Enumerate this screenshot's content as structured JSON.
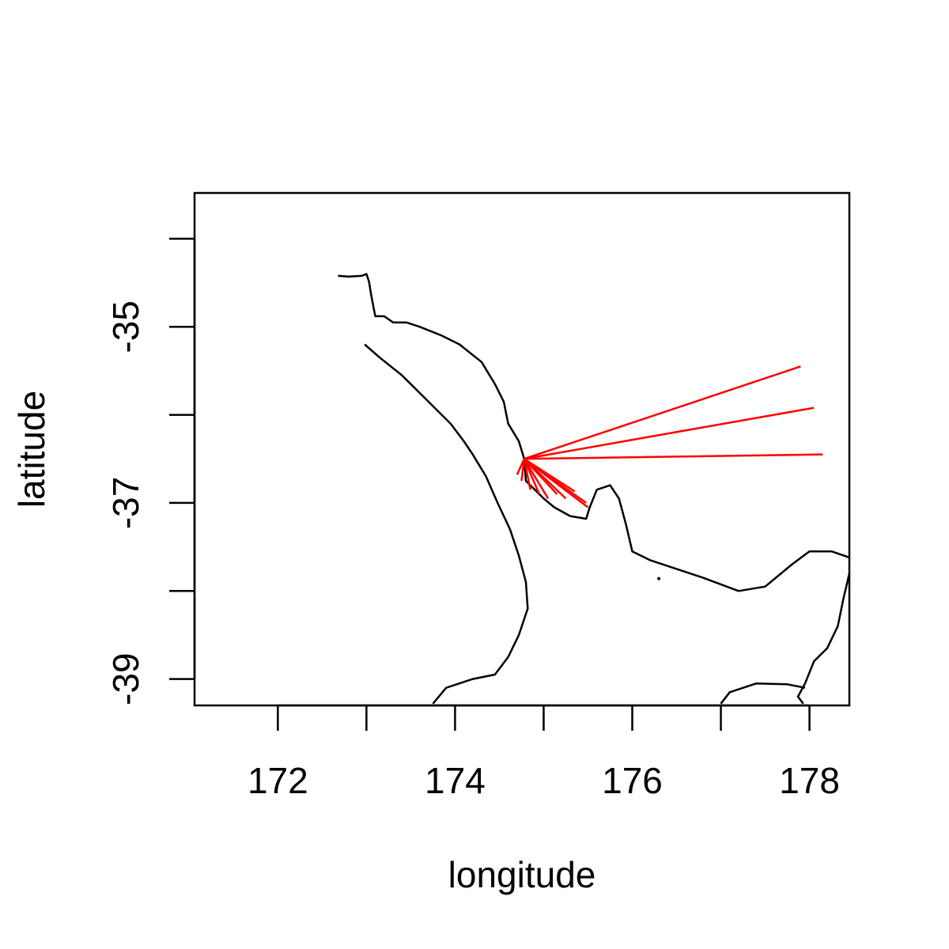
{
  "chart_data": {
    "type": "map",
    "title": "",
    "xlabel": "longitude",
    "ylabel": "latitude",
    "xlim": [
      171.06,
      178.45
    ],
    "ylim": [
      -39.3,
      -33.48
    ],
    "xticks": [
      {
        "value": 172,
        "label": "172"
      },
      {
        "value": 173,
        "label": ""
      },
      {
        "value": 174,
        "label": "174"
      },
      {
        "value": 175,
        "label": ""
      },
      {
        "value": 176,
        "label": "176"
      },
      {
        "value": 177,
        "label": ""
      },
      {
        "value": 178,
        "label": "178"
      }
    ],
    "yticks": [
      {
        "value": -34,
        "label": ""
      },
      {
        "value": -35,
        "label": "-35"
      },
      {
        "value": -36,
        "label": ""
      },
      {
        "value": -37,
        "label": "-37"
      },
      {
        "value": -38,
        "label": ""
      },
      {
        "value": -39,
        "label": "-39"
      }
    ],
    "grid": false,
    "line_color": "#ff0000",
    "coast_color": "#000000",
    "segments": {
      "origin": {
        "lon": 174.78,
        "lat": -36.5
      },
      "ends": [
        {
          "lon": 177.9,
          "lat": -35.45
        },
        {
          "lon": 178.05,
          "lat": -35.92
        },
        {
          "lon": 178.15,
          "lat": -36.45
        },
        {
          "lon": 174.7,
          "lat": -36.68
        },
        {
          "lon": 174.75,
          "lat": -36.75
        },
        {
          "lon": 174.85,
          "lat": -36.85
        },
        {
          "lon": 174.95,
          "lat": -36.9
        },
        {
          "lon": 175.05,
          "lat": -36.95
        },
        {
          "lon": 175.15,
          "lat": -36.9
        },
        {
          "lon": 175.25,
          "lat": -36.95
        },
        {
          "lon": 175.35,
          "lat": -36.87
        },
        {
          "lon": 175.48,
          "lat": -37.0
        },
        {
          "lon": 175.5,
          "lat": -37.05
        }
      ]
    },
    "coastlines": [
      [
        [
          172.68,
          -34.42
        ],
        [
          172.8,
          -34.43
        ],
        [
          172.95,
          -34.42
        ],
        [
          173.0,
          -34.4
        ],
        [
          173.03,
          -34.49
        ],
        [
          173.05,
          -34.62
        ],
        [
          173.08,
          -34.78
        ],
        [
          173.1,
          -34.88
        ],
        [
          173.2,
          -34.88
        ],
        [
          173.3,
          -34.95
        ],
        [
          173.45,
          -34.95
        ],
        [
          173.6,
          -35.0
        ],
        [
          173.85,
          -35.1
        ],
        [
          174.05,
          -35.2
        ],
        [
          174.3,
          -35.4
        ],
        [
          174.45,
          -35.65
        ],
        [
          174.55,
          -35.85
        ],
        [
          174.6,
          -36.1
        ],
        [
          174.72,
          -36.3
        ],
        [
          174.78,
          -36.5
        ],
        [
          174.8,
          -36.75
        ],
        [
          174.9,
          -36.85
        ],
        [
          175.0,
          -36.95
        ],
        [
          175.12,
          -37.05
        ],
        [
          175.3,
          -37.15
        ],
        [
          175.48,
          -37.18
        ],
        [
          175.52,
          -37.05
        ],
        [
          175.6,
          -36.85
        ],
        [
          175.75,
          -36.8
        ],
        [
          175.85,
          -36.95
        ],
        [
          175.93,
          -37.25
        ],
        [
          176.0,
          -37.55
        ],
        [
          176.2,
          -37.65
        ],
        [
          176.5,
          -37.75
        ],
        [
          176.8,
          -37.85
        ],
        [
          177.2,
          -38.0
        ],
        [
          177.5,
          -37.95
        ],
        [
          177.8,
          -37.7
        ],
        [
          178.0,
          -37.55
        ],
        [
          178.25,
          -37.55
        ],
        [
          178.45,
          -37.62
        ]
      ],
      [
        [
          178.45,
          -37.8
        ],
        [
          178.38,
          -38.1
        ],
        [
          178.32,
          -38.4
        ],
        [
          178.2,
          -38.65
        ],
        [
          178.05,
          -38.8
        ],
        [
          177.95,
          -39.05
        ],
        [
          177.87,
          -39.2
        ],
        [
          177.93,
          -39.28
        ]
      ],
      [
        [
          172.98,
          -35.2
        ],
        [
          173.15,
          -35.35
        ],
        [
          173.4,
          -35.55
        ],
        [
          173.7,
          -35.85
        ],
        [
          173.95,
          -36.1
        ],
        [
          174.1,
          -36.3
        ],
        [
          174.2,
          -36.45
        ],
        [
          174.35,
          -36.7
        ],
        [
          174.48,
          -37.0
        ],
        [
          174.62,
          -37.3
        ],
        [
          174.72,
          -37.6
        ],
        [
          174.8,
          -37.9
        ],
        [
          174.82,
          -38.2
        ],
        [
          174.72,
          -38.5
        ],
        [
          174.6,
          -38.75
        ],
        [
          174.45,
          -38.95
        ],
        [
          174.2,
          -39.0
        ],
        [
          173.9,
          -39.1
        ],
        [
          173.75,
          -39.28
        ]
      ],
      [
        [
          177.0,
          -39.28
        ],
        [
          177.1,
          -39.15
        ],
        [
          177.4,
          -39.05
        ],
        [
          177.75,
          -39.06
        ],
        [
          177.95,
          -39.1
        ]
      ]
    ],
    "islands": [
      {
        "lon": 176.3,
        "lat": -37.86
      }
    ]
  }
}
